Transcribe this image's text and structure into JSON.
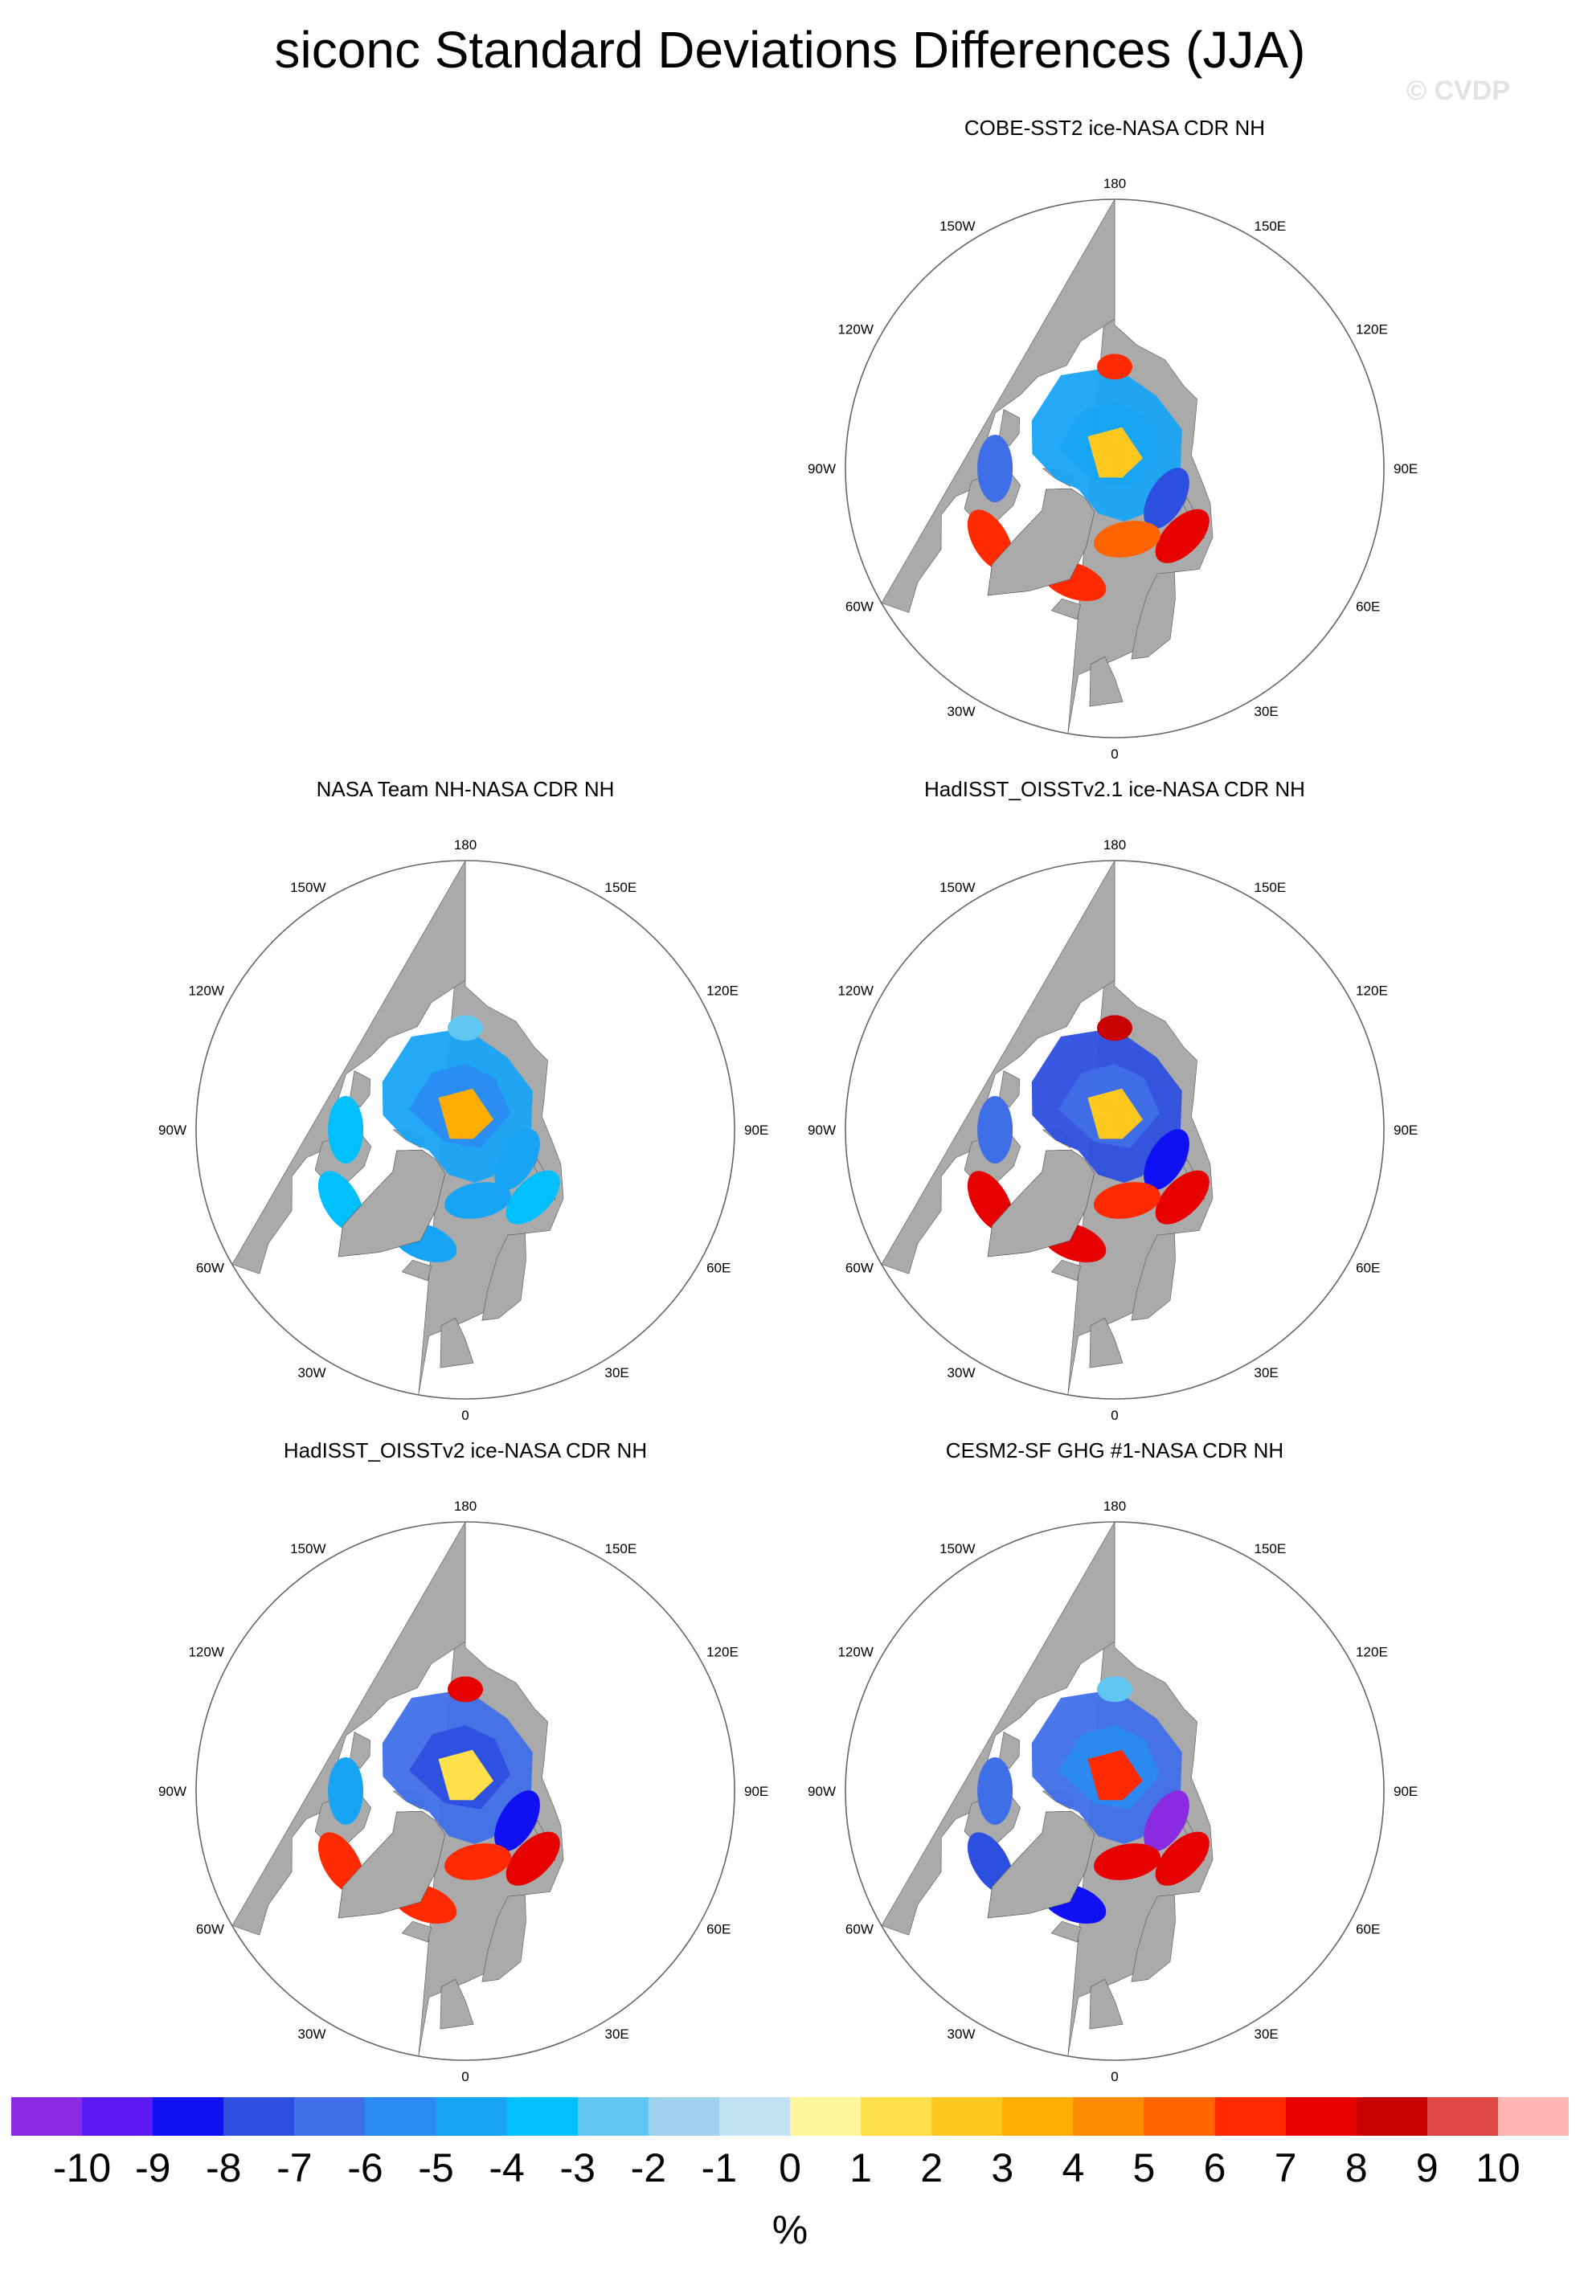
{
  "title": "siconc Standard Deviations Differences (JJA)",
  "watermark": "© CVDP",
  "lon_labels": {
    "l180": "180",
    "l150w": "150W",
    "l150e": "150E",
    "l120w": "120W",
    "l120e": "120E",
    "l90w": "90W",
    "l90e": "90E",
    "l60w": "60W",
    "l60e": "60E",
    "l30w": "30W",
    "l30e": "30E",
    "l0": "0"
  },
  "panels": [
    {
      "title": "COBE-SST2 ice-NASA CDR NH",
      "fill": [
        {
          "lon": 180,
          "lat": 73,
          "level": 6
        },
        {
          "lon": -160,
          "lat": 80,
          "level": -4
        },
        {
          "lon": 160,
          "lat": 80,
          "level": -4
        },
        {
          "lon": 0,
          "lat": 89,
          "level": 2
        },
        {
          "lon": 60,
          "lat": 80,
          "level": -7
        },
        {
          "lon": 45,
          "lat": 74,
          "level": 7
        },
        {
          "lon": -90,
          "lat": 70,
          "level": -6
        },
        {
          "lon": -60,
          "lat": 66,
          "level": 6
        },
        {
          "lon": -20,
          "lat": 70,
          "level": 6
        },
        {
          "lon": 10,
          "lat": 78,
          "level": 5
        }
      ]
    },
    {
      "title": "NASA Team NH-NASA CDR NH",
      "fill": [
        {
          "lon": 180,
          "lat": 73,
          "level": -2
        },
        {
          "lon": -160,
          "lat": 80,
          "level": -4
        },
        {
          "lon": 160,
          "lat": 80,
          "level": -5
        },
        {
          "lon": 0,
          "lat": 89,
          "level": 3
        },
        {
          "lon": 60,
          "lat": 80,
          "level": -4
        },
        {
          "lon": 45,
          "lat": 74,
          "level": -3
        },
        {
          "lon": -90,
          "lat": 70,
          "level": -3
        },
        {
          "lon": -60,
          "lat": 66,
          "level": -3
        },
        {
          "lon": -20,
          "lat": 70,
          "level": -4
        },
        {
          "lon": 10,
          "lat": 78,
          "level": -4
        }
      ]
    },
    {
      "title": "HadISST_OISSTv2.1 ice-NASA CDR NH",
      "fill": [
        {
          "lon": 180,
          "lat": 73,
          "level": 8
        },
        {
          "lon": -160,
          "lat": 80,
          "level": -7
        },
        {
          "lon": 160,
          "lat": 80,
          "level": -6
        },
        {
          "lon": 0,
          "lat": 89,
          "level": 2
        },
        {
          "lon": 60,
          "lat": 80,
          "level": -8
        },
        {
          "lon": 45,
          "lat": 74,
          "level": 7
        },
        {
          "lon": -90,
          "lat": 70,
          "level": -6
        },
        {
          "lon": -60,
          "lat": 66,
          "level": 7
        },
        {
          "lon": -20,
          "lat": 70,
          "level": 7
        },
        {
          "lon": 10,
          "lat": 78,
          "level": 6
        }
      ]
    },
    {
      "title": "HadISST_OISSTv2 ice-NASA CDR NH",
      "fill": [
        {
          "lon": 180,
          "lat": 73,
          "level": 7
        },
        {
          "lon": -160,
          "lat": 80,
          "level": -6
        },
        {
          "lon": 160,
          "lat": 80,
          "level": -7
        },
        {
          "lon": 0,
          "lat": 89,
          "level": 1
        },
        {
          "lon": 60,
          "lat": 80,
          "level": -8
        },
        {
          "lon": 45,
          "lat": 74,
          "level": 7
        },
        {
          "lon": -90,
          "lat": 70,
          "level": -4
        },
        {
          "lon": -60,
          "lat": 66,
          "level": 6
        },
        {
          "lon": -20,
          "lat": 70,
          "level": 6
        },
        {
          "lon": 10,
          "lat": 78,
          "level": 6
        }
      ]
    },
    {
      "title": "CESM2-SF GHG #1-NASA CDR NH",
      "fill": [
        {
          "lon": 180,
          "lat": 73,
          "level": -2
        },
        {
          "lon": -160,
          "lat": 80,
          "level": -6
        },
        {
          "lon": 160,
          "lat": 80,
          "level": -5
        },
        {
          "lon": 0,
          "lat": 89,
          "level": 6
        },
        {
          "lon": 60,
          "lat": 80,
          "level": -10
        },
        {
          "lon": 45,
          "lat": 74,
          "level": 7
        },
        {
          "lon": -90,
          "lat": 70,
          "level": -6
        },
        {
          "lon": -60,
          "lat": 66,
          "level": -7
        },
        {
          "lon": -20,
          "lat": 70,
          "level": -8
        },
        {
          "lon": 10,
          "lat": 78,
          "level": 7
        }
      ]
    }
  ],
  "colorbar": {
    "labels": [
      "-10",
      "-9",
      "-8",
      "-7",
      "-6",
      "-5",
      "-4",
      "-3",
      "-2",
      "-1",
      "0",
      "1",
      "2",
      "3",
      "4",
      "5",
      "6",
      "7",
      "8",
      "9",
      "10"
    ],
    "colors": [
      "#8a2be2",
      "#5b1bf0",
      "#1010f5",
      "#2d4fe0",
      "#3f6fe8",
      "#2a8bf2",
      "#18a4f5",
      "#00bfff",
      "#5fc6f2",
      "#a0d2ee",
      "#c2e2f4",
      "#fff59b",
      "#ffe04a",
      "#ffc81e",
      "#ffad00",
      "#ff8c00",
      "#ff6400",
      "#ff2a00",
      "#e60000",
      "#c80000",
      "#e04848",
      "#ffb4b4"
    ],
    "unit": "%"
  }
}
